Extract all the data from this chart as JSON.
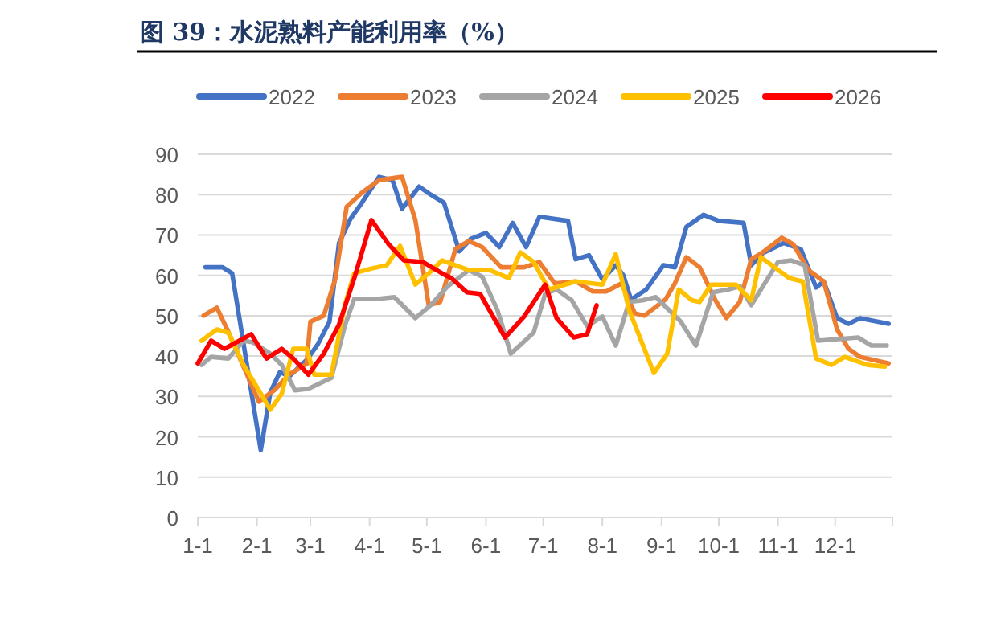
{
  "chart_data": {
    "type": "line",
    "title": "图 39：水泥熟料产能利用率（%）",
    "legend": "top",
    "grid": "y",
    "line_style": "solid",
    "marker": "none",
    "xlim": [
      "--01-01",
      "--12-31"
    ],
    "ylim": [
      0,
      90
    ],
    "xticks": [
      {
        "value": "--01-01",
        "label": "1-1"
      },
      {
        "value": "--02-01",
        "label": "2-1"
      },
      {
        "value": "--03-01",
        "label": "3-1"
      },
      {
        "value": "--04-01",
        "label": "4-1"
      },
      {
        "value": "--05-01",
        "label": "5-1"
      },
      {
        "value": "--06-01",
        "label": "6-1"
      },
      {
        "value": "--07-01",
        "label": "7-1"
      },
      {
        "value": "--08-01",
        "label": "8-1"
      },
      {
        "value": "--09-01",
        "label": "9-1"
      },
      {
        "value": "--10-01",
        "label": "10-1"
      },
      {
        "value": "--11-01",
        "label": "11-1"
      },
      {
        "value": "--12-01",
        "label": "12-1"
      },
      {
        "value": "--12-31",
        "label": null
      }
    ],
    "yticks": [
      0,
      10,
      20,
      30,
      40,
      50,
      60,
      70,
      80,
      90
    ],
    "series": [
      {
        "name": "2022",
        "color": "#4472c4",
        "x": [
          "--01-05",
          "--01-14",
          "--01-19",
          "--02-03",
          "--02-08",
          "--02-13",
          "--02-18",
          "--02-27",
          "--03-05",
          "--03-11",
          "--03-16",
          "--03-22",
          "--03-28",
          "--04-06",
          "--04-13",
          "--04-18",
          "--04-27",
          "--05-03",
          "--05-10",
          "--05-18",
          "--05-24",
          "--06-01",
          "--06-08",
          "--06-15",
          "--06-22",
          "--06-29",
          "--07-14",
          "--07-18",
          "--07-25",
          "--08-01",
          "--08-08",
          "--08-12",
          "--08-16",
          "--08-24",
          "--09-02",
          "--09-08",
          "--09-14",
          "--09-23",
          "--10-01",
          "--10-14",
          "--10-18",
          "--10-24",
          "--11-04",
          "--11-13",
          "--11-21",
          "--11-25",
          "--12-02",
          "--12-08",
          "--12-14",
          "--12-29"
        ],
        "values": [
          62,
          62,
          60.5,
          16.7,
          31,
          36,
          35,
          39,
          43,
          48.5,
          68,
          74,
          78,
          84.4,
          83.6,
          76.5,
          82,
          80,
          78,
          66,
          69,
          70.5,
          67,
          73,
          67,
          74.5,
          73.5,
          64,
          65,
          59,
          62.5,
          60,
          54,
          56.5,
          62.5,
          62,
          72,
          75,
          73.5,
          73,
          62.5,
          65.5,
          68,
          66.5,
          57,
          58.5,
          49.4,
          48,
          49.4,
          48
        ]
      },
      {
        "name": "2023",
        "color": "#ed7d31",
        "x": [
          "--01-04",
          "--01-11",
          "--01-17",
          "--02-02",
          "--02-10",
          "--02-18",
          "--02-27",
          "--03-01",
          "--03-08",
          "--03-14",
          "--03-20",
          "--03-28",
          "--04-06",
          "--04-18",
          "--04-25",
          "--05-02",
          "--05-08",
          "--05-16",
          "--05-23",
          "--05-30",
          "--06-09",
          "--06-21",
          "--06-29",
          "--07-07",
          "--07-18",
          "--07-27",
          "--08-03",
          "--08-11",
          "--08-18",
          "--08-23",
          "--09-03",
          "--09-08",
          "--09-14",
          "--09-21",
          "--09-29",
          "--10-05",
          "--10-12",
          "--10-18",
          "--10-24",
          "--11-03",
          "--11-09",
          "--11-17",
          "--11-25",
          "--12-02",
          "--12-08",
          "--12-14",
          "--12-29"
        ],
        "values": [
          50,
          52,
          46,
          28.7,
          31.5,
          35.5,
          38,
          48.5,
          50,
          59,
          77,
          80.5,
          83.6,
          84.4,
          73.7,
          52.6,
          53.4,
          66.5,
          68.5,
          67,
          62,
          62,
          63.3,
          58,
          58.5,
          56,
          56,
          58,
          50.6,
          50,
          54,
          58,
          64.5,
          62,
          54,
          49.4,
          53.4,
          64,
          65.7,
          69.3,
          67.7,
          61.3,
          58.5,
          46.6,
          41.8,
          39.8,
          38.2
        ]
      },
      {
        "name": "2024",
        "color": "#a5a5a5",
        "x": [
          "--01-03",
          "--01-08",
          "--01-17",
          "--01-25",
          "--01-30",
          "--02-08",
          "--02-14",
          "--02-21",
          "--02-28",
          "--03-12",
          "--03-19",
          "--03-24",
          "--04-06",
          "--04-14",
          "--04-25",
          "--05-03",
          "--05-12",
          "--05-23",
          "--05-30",
          "--06-07",
          "--06-14",
          "--06-26",
          "--07-02",
          "--07-08",
          "--07-16",
          "--07-24",
          "--08-01",
          "--08-08",
          "--08-15",
          "--08-22",
          "--08-29",
          "--09-04",
          "--09-11",
          "--09-19",
          "--09-28",
          "--10-06",
          "--10-12",
          "--10-18",
          "--11-01",
          "--11-08",
          "--11-15",
          "--11-22",
          "--12-13",
          "--12-20",
          "--12-28"
        ],
        "values": [
          37.8,
          39.8,
          39.4,
          43.8,
          43.4,
          40.6,
          37.8,
          31.5,
          31.9,
          34.6,
          47.4,
          54.2,
          54.2,
          54.6,
          49.4,
          52.6,
          57.3,
          61.3,
          59.7,
          51.4,
          40.6,
          45.8,
          55.4,
          56.5,
          53.8,
          47.4,
          49.8,
          42.6,
          53.4,
          53.8,
          54.6,
          51.8,
          48.6,
          42.6,
          55.8,
          56.5,
          57.3,
          52.6,
          63.3,
          63.7,
          62.5,
          43.8,
          44.6,
          42.6,
          42.6
        ]
      },
      {
        "name": "2025",
        "color": "#ffc000",
        "x": [
          "--01-03",
          "--01-11",
          "--01-17",
          "--01-25",
          "--02-02",
          "--02-08",
          "--02-14",
          "--02-20",
          "--02-27",
          "--03-03",
          "--03-12",
          "--03-19",
          "--03-24",
          "--04-02",
          "--04-10",
          "--04-17",
          "--04-25",
          "--05-02",
          "--05-09",
          "--05-23",
          "--06-03",
          "--06-13",
          "--06-19",
          "--06-26",
          "--07-04",
          "--07-18",
          "--08-01",
          "--08-08",
          "--08-15",
          "--08-28",
          "--09-04",
          "--09-10",
          "--09-17",
          "--09-21",
          "--09-27",
          "--10-10",
          "--10-18",
          "--10-23",
          "--11-07",
          "--11-14",
          "--11-21",
          "--11-29",
          "--12-06",
          "--12-18",
          "--12-27"
        ],
        "values": [
          43.8,
          46.6,
          45.8,
          37.8,
          31.5,
          26.7,
          30.7,
          41.8,
          41.8,
          35.4,
          35.4,
          52.6,
          60.5,
          61.7,
          62.5,
          67.3,
          57.7,
          60.5,
          63.7,
          61.3,
          61.3,
          59.3,
          65.7,
          63.3,
          56.5,
          58.5,
          57.7,
          65.3,
          51.4,
          35.8,
          40.6,
          56.5,
          53.8,
          53.4,
          57.7,
          57.7,
          53.8,
          64.5,
          59.3,
          58.5,
          39.4,
          37.8,
          39.8,
          37.8,
          37.4
        ]
      },
      {
        "name": "2026",
        "color": "#ff0000",
        "x": [
          "--01-01",
          "--01-08",
          "--01-15",
          "--01-29",
          "--02-06",
          "--02-14",
          "--02-20",
          "--02-28",
          "--03-08",
          "--03-16",
          "--03-24",
          "--04-02",
          "--04-11",
          "--04-19",
          "--04-29",
          "--05-09",
          "--05-14",
          "--05-22",
          "--05-29",
          "--06-11",
          "--06-21",
          "--07-02",
          "--07-08",
          "--07-17",
          "--07-24",
          "--07-29"
        ],
        "values": [
          38.2,
          43.8,
          41.8,
          45.4,
          39.4,
          41.8,
          39.4,
          35.4,
          40.6,
          47.8,
          59.3,
          73.7,
          67.7,
          63.7,
          63.3,
          60.5,
          59.3,
          55.8,
          55.4,
          44.6,
          49.8,
          57.7,
          49.4,
          44.6,
          45.4,
          52.6
        ]
      }
    ]
  }
}
